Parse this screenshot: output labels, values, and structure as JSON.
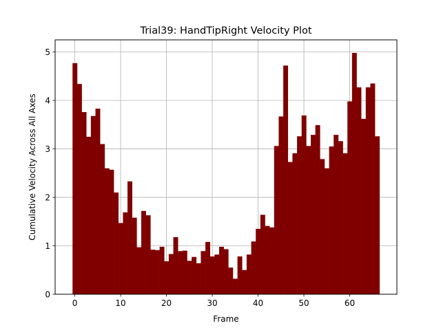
{
  "chart_data": {
    "type": "bar",
    "title": "Trial39: HandTipRight Velocity Plot",
    "xlabel": "Frame",
    "ylabel": "Cumulative Velocity Across All Axes",
    "xlim": [
      -4.3,
      70.3
    ],
    "ylim": [
      0,
      5.25
    ],
    "xticks": [
      0,
      10,
      20,
      30,
      40,
      50,
      60
    ],
    "yticks": [
      0,
      1,
      2,
      3,
      4,
      5
    ],
    "grid": true,
    "bar_color": "#800000",
    "x": [
      0,
      1,
      2,
      3,
      4,
      5,
      6,
      7,
      8,
      9,
      10,
      11,
      12,
      13,
      14,
      15,
      16,
      17,
      18,
      19,
      20,
      21,
      22,
      23,
      24,
      25,
      26,
      27,
      28,
      29,
      30,
      31,
      32,
      33,
      34,
      35,
      36,
      37,
      38,
      39,
      40,
      41,
      42,
      43,
      44,
      45,
      46,
      47,
      48,
      49,
      50,
      51,
      52,
      53,
      54,
      55,
      56,
      57,
      58,
      59,
      60,
      61,
      62,
      63,
      64,
      65,
      66
    ],
    "values": [
      4.77,
      4.34,
      3.76,
      3.25,
      3.68,
      3.83,
      3.1,
      2.6,
      2.57,
      2.1,
      1.47,
      1.69,
      2.33,
      1.58,
      0.97,
      1.72,
      1.63,
      0.92,
      0.91,
      0.98,
      0.68,
      0.83,
      1.18,
      0.89,
      0.9,
      0.69,
      0.77,
      0.64,
      0.89,
      1.08,
      0.78,
      0.82,
      0.98,
      0.93,
      0.55,
      0.32,
      0.78,
      0.5,
      0.82,
      1.09,
      1.35,
      1.64,
      1.41,
      1.38,
      3.06,
      3.67,
      4.72,
      2.73,
      2.91,
      3.26,
      3.69,
      3.06,
      3.29,
      3.49,
      2.79,
      2.6,
      3.05,
      3.29,
      3.16,
      2.91,
      3.98,
      4.98,
      4.27,
      3.62,
      4.27,
      4.35,
      3.26
    ]
  }
}
